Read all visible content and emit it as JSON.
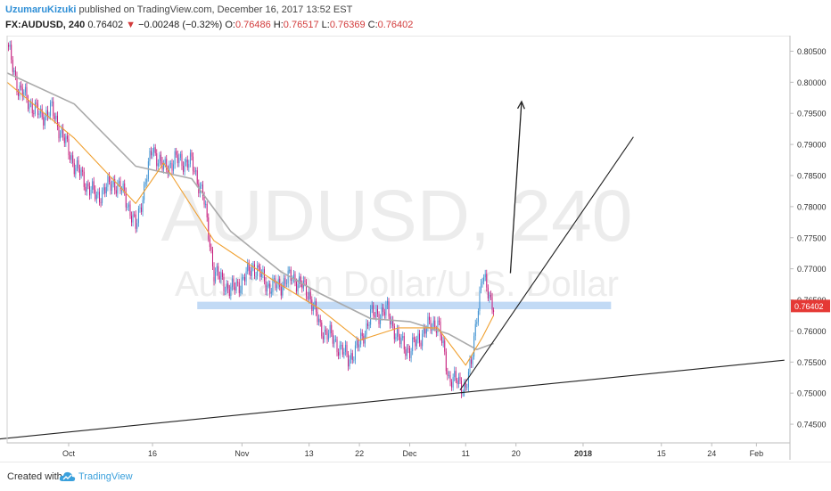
{
  "header": {
    "author": "UzumaruKizuki",
    "published_text": "published on TradingView.com, December 16, 2017 13:52 EST",
    "symbol": "FX:AUDUSD, 240",
    "last": "0.76402",
    "down_arrow": "▼",
    "change": "−0.00248 (−0.32%)",
    "o_label": "O:",
    "o_value": "0.76486",
    "h_label": "H:",
    "h_value": "0.76517",
    "l_label": "L:",
    "l_value": "0.76369",
    "c_label": "C:",
    "c_value": "0.76402"
  },
  "watermark": {
    "symbol": "AUDUSD, 240",
    "name": "Australian Dollar/U.S. Dollar"
  },
  "footer": {
    "created_with": "Created with",
    "brand": "TradingView",
    "logo_icon": "tradingview-cloud-icon"
  },
  "colors": {
    "bull": "#3a8fd0",
    "bear": "#c51a7a",
    "ema_fast": "#f0a030",
    "ma_slow": "#aaaaaa",
    "zone": "#b7d3f3",
    "price_tag": "#e53935"
  },
  "chart_data": {
    "type": "candlestick",
    "timeframe": "240",
    "symbol": "FX:AUDUSD",
    "x_ticks": [
      "Oct",
      "16",
      "Nov",
      "13",
      "22",
      "Dec",
      "11",
      "20",
      "2018",
      "15",
      "24",
      "Feb"
    ],
    "y_ticks": [
      "0.80500",
      "0.80000",
      "0.79500",
      "0.79000",
      "0.78500",
      "0.78000",
      "0.77500",
      "0.77000",
      "0.76500",
      "0.76000",
      "0.75500",
      "0.75000",
      "0.74500"
    ],
    "ylim": [
      0.742,
      0.8075
    ],
    "last_price": "0.76402",
    "price_path": [
      [
        "Sep 20",
        0.806
      ],
      [
        "Sep 22",
        0.799
      ],
      [
        "Sep 26",
        0.7945
      ],
      [
        "Sep 28",
        0.7955
      ],
      [
        "Oct 2",
        0.7868
      ],
      [
        "Oct 4",
        0.7838
      ],
      [
        "Oct 6",
        0.7815
      ],
      [
        "Oct 9",
        0.784
      ],
      [
        "Oct 11",
        0.782
      ],
      [
        "Oct 13",
        0.7765
      ],
      [
        "Oct 16",
        0.7895
      ],
      [
        "Oct 18",
        0.786
      ],
      [
        "Oct 20",
        0.7875
      ],
      [
        "Oct 23",
        0.787
      ],
      [
        "Oct 25",
        0.782
      ],
      [
        "Oct 27",
        0.7695
      ],
      [
        "Oct 30",
        0.7665
      ],
      [
        "Nov 1",
        0.768
      ],
      [
        "Nov 3",
        0.7705
      ],
      [
        "Nov 6",
        0.767
      ],
      [
        "Nov 8",
        0.7675
      ],
      [
        "Nov 10",
        0.7688
      ],
      [
        "Nov 13",
        0.766
      ],
      [
        "Nov 15",
        0.7605
      ],
      [
        "Nov 17",
        0.759
      ],
      [
        "Nov 20",
        0.7555
      ],
      [
        "Nov 22",
        0.7578
      ],
      [
        "Nov 24",
        0.7625
      ],
      [
        "Nov 27",
        0.7632
      ],
      [
        "Nov 29",
        0.7585
      ],
      [
        "Dec 1",
        0.7568
      ],
      [
        "Dec 4",
        0.7605
      ],
      [
        "Dec 6",
        0.7615
      ],
      [
        "Dec 8",
        0.7525
      ],
      [
        "Dec 11",
        0.751
      ],
      [
        "Dec 12",
        0.7545
      ],
      [
        "Dec 13",
        0.763
      ],
      [
        "Dec 14",
        0.7685
      ],
      [
        "Dec 15",
        0.7665
      ],
      [
        "Dec 16",
        0.764
      ]
    ],
    "ema_fast_path": [
      [
        "Sep 20",
        0.8
      ],
      [
        "Oct 2",
        0.791
      ],
      [
        "Oct 13",
        0.7805
      ],
      [
        "Oct 18",
        0.787
      ],
      [
        "Oct 27",
        0.7745
      ],
      [
        "Nov 6",
        0.7685
      ],
      [
        "Nov 15",
        0.7635
      ],
      [
        "Nov 22",
        0.7585
      ],
      [
        "Nov 29",
        0.7605
      ],
      [
        "Dec 6",
        0.7605
      ],
      [
        "Dec 11",
        0.7545
      ],
      [
        "Dec 14",
        0.759
      ],
      [
        "Dec 16",
        0.7625
      ]
    ],
    "ma_slow_path": [
      [
        "Sep 20",
        0.8015
      ],
      [
        "Oct 2",
        0.7965
      ],
      [
        "Oct 13",
        0.7865
      ],
      [
        "Oct 23",
        0.7845
      ],
      [
        "Oct 30",
        0.776
      ],
      [
        "Nov 8",
        0.7695
      ],
      [
        "Nov 15",
        0.766
      ],
      [
        "Nov 24",
        0.762
      ],
      [
        "Dec 1",
        0.7615
      ],
      [
        "Dec 8",
        0.7595
      ],
      [
        "Dec 13",
        0.757
      ],
      [
        "Dec 16",
        0.758
      ]
    ],
    "support_zone": {
      "from": "Oct 24",
      "to": "Jan 6",
      "low": 0.7635,
      "high": 0.7647
    },
    "trendlines": [
      {
        "from": [
          "Sep 15",
          0.7423
        ],
        "to": [
          "Feb 6",
          0.7553
        ]
      },
      {
        "from": [
          "Dec 10",
          0.7505
        ],
        "to": [
          "Jan 10",
          0.7912
        ]
      }
    ],
    "arrow": {
      "from": [
        "Dec 19",
        0.7693
      ],
      "to": [
        "Dec 21",
        0.7969
      ]
    }
  }
}
